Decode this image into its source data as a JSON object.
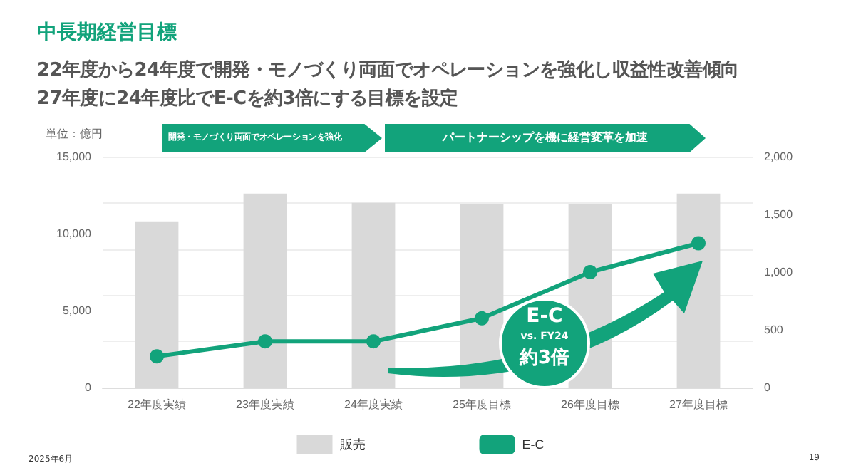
{
  "chart_data": {
    "type": "bar",
    "title": "中長期経営目標",
    "subtitle": "22年度から24年度で開発・モノづくり両面でオペレーションを強化し収益性改善傾向\n27年度に24年度比でE-Cを約3倍にする目標を設定",
    "ylabel": "単位：億円",
    "categories": [
      "22年度実績",
      "23年度実績",
      "24年度実績",
      "25年度目標",
      "26年度目標",
      "27年度目標"
    ],
    "series": [
      {
        "name": "販売",
        "color": "#d9d9d9",
        "values": [
          10800,
          12600,
          12000,
          11900,
          11900,
          12600
        ]
      },
      {
        "name": "E-C",
        "type": "line",
        "axis": "y2",
        "color": "#12a37b",
        "values": [
          270,
          400,
          400,
          600,
          1000,
          1250
        ]
      }
    ],
    "ylim": [
      0,
      15000
    ],
    "yticks": [
      0,
      {
        "value": 5000,
        "label": "5,000"
      },
      {
        "value": 10000,
        "label": "10,000"
      },
      {
        "value": 15000,
        "label": "15,000"
      }
    ],
    "y2lim": [
      0,
      2000
    ],
    "y2ticks": [
      0,
      500,
      {
        "value": 1000,
        "label": "1,000"
      },
      {
        "value": 1500,
        "label": "1,500"
      },
      {
        "value": 2000,
        "label": "2,000"
      }
    ],
    "grid": "y",
    "legend": "bottom",
    "marker": "circle",
    "line_style": "solid",
    "annotations": [
      "開発・モノづくり両面でオペレーションを強化",
      "パートナーシップを機に経営変革を加速",
      "E-C",
      "vs. FY24",
      "約3倍",
      "2025年6月",
      "19"
    ]
  }
}
